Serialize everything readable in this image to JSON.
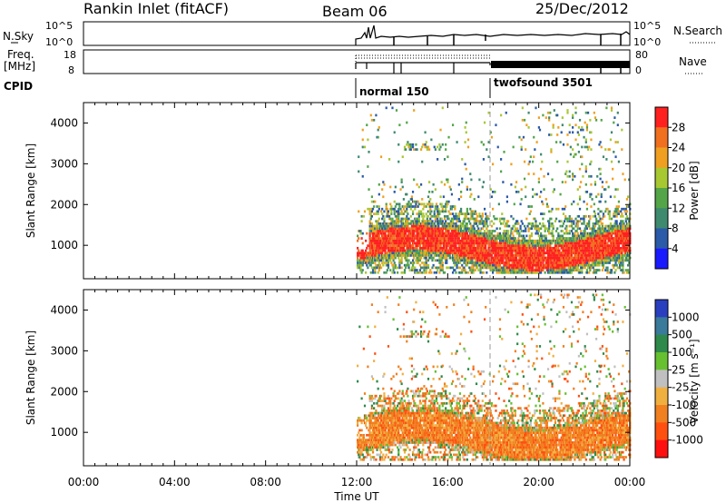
{
  "header": {
    "station": "Rankin Inlet (fitACF)",
    "beam": "Beam 06",
    "date": "25/Dec/2012"
  },
  "noise_panel": {
    "label": "N.Sky",
    "right_label": "N.Search",
    "y_ticks": [
      "10^5",
      "10^0"
    ]
  },
  "freq_panel": {
    "label_line1": "Freq.",
    "label_line2": "[MHz]",
    "y_ticks": [
      "18",
      "8"
    ],
    "right_label": "Nave",
    "right_ticks": [
      "80",
      "0"
    ]
  },
  "cpid": {
    "label": "CPID",
    "programs": [
      {
        "name": "normal 150",
        "start": "12:00",
        "end": "18:00"
      },
      {
        "name": "twofsound 3501",
        "start": "18:00",
        "end": "24:00"
      }
    ]
  },
  "chart_data": [
    {
      "type": "heatmap",
      "ylabel": "Slant Range [km]",
      "xlabel": "",
      "ylim": [
        180,
        4500
      ],
      "y_ticks": [
        1000,
        2000,
        3000,
        4000
      ],
      "x_ticks": [
        "00:00",
        "04:00",
        "08:00",
        "12:00",
        "16:00",
        "20:00",
        "00:00"
      ],
      "colorbar": {
        "label": "Power [dB]",
        "ticks": [
          "4",
          "8",
          "12",
          "16",
          "20",
          "24",
          "28"
        ],
        "colors": [
          "#1a1aff",
          "#2a5aa8",
          "#3e8a6e",
          "#53a548",
          "#a8c832",
          "#f0a020",
          "#f07020",
          "#ff2020"
        ]
      }
    },
    {
      "type": "heatmap",
      "ylabel": "Slant Range [km]",
      "xlabel": "Time UT",
      "ylim": [
        180,
        4500
      ],
      "y_ticks": [
        1000,
        2000,
        3000,
        4000
      ],
      "x_ticks": [
        "00:00",
        "04:00",
        "08:00",
        "12:00",
        "16:00",
        "20:00",
        "00:00"
      ],
      "colorbar": {
        "label": "Velocity [m s⁻¹]",
        "ticks": [
          "1000",
          "500",
          "100",
          "25",
          "-25",
          "-100",
          "-500",
          "-1000"
        ],
        "colors": [
          "#2a3fbf",
          "#3a7a9a",
          "#2e8a4a",
          "#66c030",
          "#c0c0c0",
          "#f0b040",
          "#f08020",
          "#ff5010",
          "#ff1010"
        ]
      }
    }
  ]
}
